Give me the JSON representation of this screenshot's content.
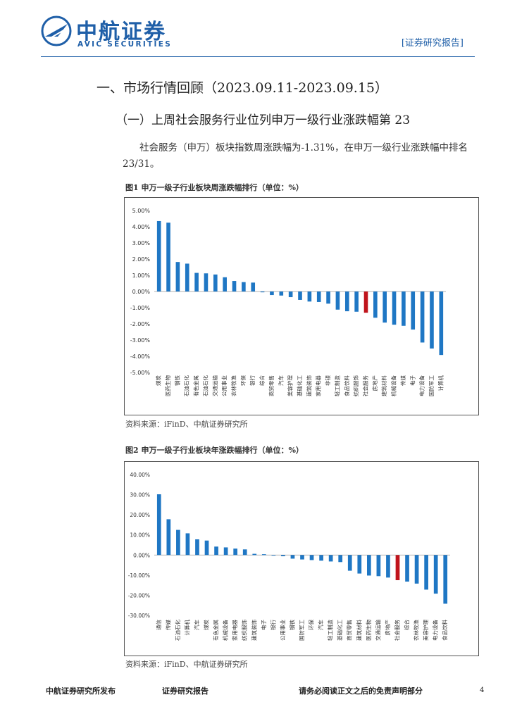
{
  "header": {
    "logo_cn": "中航证券",
    "logo_en": "AVIC SECURITIES",
    "report_tag": "[证券研究报告]"
  },
  "section_title": "一、市场行情回顾（2023.09.11-2023.09.15）",
  "subsection_title": "（一）上周社会服务行业位列申万一级行业涨跌幅第 23",
  "paragraph": "社会服务（申万）板块指数周涨跌幅为-1.31%，在申万一级行业涨跌幅中排名 23/31。",
  "figures": [
    {
      "title": "图1  申万一级子行业板块周涨跌幅排行（单位：%）",
      "source": "资料来源：iFinD、中航证券研究所"
    },
    {
      "title": "图2  申万一级子行业板块年涨跌幅排行（单位：%）",
      "source": "资料来源：iFinD、中航证券研究所"
    }
  ],
  "colors": {
    "bar": "#1f77c4",
    "highlight": "#c0141c",
    "brand": "#1f5fa8"
  },
  "chart_data": [
    {
      "type": "bar",
      "title": "",
      "ylim": [
        -5,
        5
      ],
      "yticks": [
        "5.00%",
        "4.00%",
        "3.00%",
        "2.00%",
        "1.00%",
        "0.00%",
        "-1.00%",
        "-2.00%",
        "-3.00%",
        "-4.00%",
        "-5.00%"
      ],
      "highlight": "社会服务",
      "categories": [
        "煤炭",
        "医药生物",
        "钢铁",
        "石油石化",
        "有色金属",
        "石油石化",
        "交通运输",
        "公用事业",
        "农林牧渔",
        "环保",
        "银行",
        "综合",
        "商贸零售",
        "汽车",
        "美容护理",
        "基础化工",
        "建筑装饰",
        "家用电器",
        "非银",
        "轻工制造",
        "食品饮料",
        "纺织服饰",
        "社会服务",
        "房地产",
        "建筑材料",
        "机械设备",
        "传媒",
        "电子",
        "电力设备",
        "国防军工",
        "计算机"
      ],
      "values": [
        4.35,
        4.25,
        1.82,
        1.72,
        1.15,
        1.12,
        1.05,
        0.88,
        0.65,
        0.58,
        0.55,
        -0.05,
        -0.22,
        -0.25,
        -0.35,
        -0.52,
        -0.62,
        -0.65,
        -0.75,
        -1.12,
        -1.22,
        -1.25,
        -1.31,
        -1.62,
        -1.92,
        -2.05,
        -2.12,
        -2.35,
        -3.15,
        -3.52,
        -3.92
      ]
    },
    {
      "type": "bar",
      "title": "",
      "ylim": [
        -30,
        40
      ],
      "yticks": [
        "40.00%",
        "30.00%",
        "20.00%",
        "10.00%",
        "0.00%",
        "-10.00%",
        "-20.00%",
        "-30.00%"
      ],
      "highlight": "社会服务",
      "categories": [
        "通信",
        "传媒",
        "石油石化",
        "计算机",
        "汽车",
        "煤炭",
        "有色金属",
        "机械设备",
        "家用电器",
        "纺织服饰",
        "建筑装饰",
        "电子",
        "银行",
        "公用事业",
        "钢铁",
        "国防军工",
        "环保",
        "汽车",
        "轻工制造",
        "基础化工",
        "商贸零售",
        "建筑材料",
        "医药生物",
        "交通运输",
        "房地产",
        "社会服务",
        "综合",
        "农林牧渔",
        "美容护理",
        "电力设备",
        "食品饮料"
      ],
      "values": [
        30.2,
        17.8,
        12.5,
        10.8,
        7.8,
        7.2,
        4.2,
        3.8,
        3.2,
        2.8,
        0.6,
        0.4,
        -0.3,
        -0.6,
        -1.8,
        -2.2,
        -2.5,
        -2.8,
        -3.2,
        -3.5,
        -7.8,
        -9.2,
        -10.2,
        -10.5,
        -11.2,
        -12.5,
        -13.2,
        -14.2,
        -17.2,
        -19.2,
        -24.2
      ]
    }
  ],
  "footer": {
    "left": "中航证券研究所发布",
    "mid": "证券研究报告",
    "right": "请务必阅读正文之后的免责声明部分",
    "page": "4"
  }
}
